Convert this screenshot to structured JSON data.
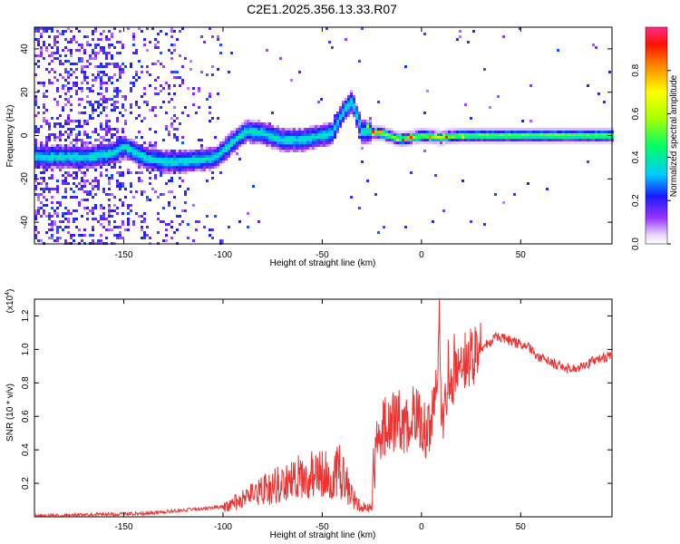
{
  "title": "C2E1.2025.356.13.33.R07",
  "colors": {
    "series": "#ee3333",
    "frame": "#000000"
  },
  "chart_data": [
    {
      "type": "heatmap",
      "xlabel": "Height of straight line (km)",
      "ylabel": "Frequency (Hz)",
      "xlim": [
        -195,
        96
      ],
      "ylim": [
        -50,
        50
      ],
      "xticks": [
        -150,
        -100,
        -50,
        0,
        50
      ],
      "yticks": [
        -40,
        -20,
        0,
        20,
        40
      ],
      "colorbar": {
        "label": "Normalized spectral amplitude",
        "range": [
          0,
          1
        ],
        "ticks": [
          0.0,
          0.2,
          0.4,
          0.6,
          0.8
        ]
      },
      "ridge": [
        {
          "x": -168,
          "y": -10
        },
        {
          "x": -155,
          "y": -8
        },
        {
          "x": -150,
          "y": -5
        },
        {
          "x": -140,
          "y": -10
        },
        {
          "x": -130,
          "y": -12
        },
        {
          "x": -120,
          "y": -12
        },
        {
          "x": -110,
          "y": -11
        },
        {
          "x": -103,
          "y": -10
        },
        {
          "x": -95,
          "y": -3
        },
        {
          "x": -88,
          "y": 2
        },
        {
          "x": -80,
          "y": 1
        },
        {
          "x": -70,
          "y": -2
        },
        {
          "x": -60,
          "y": -2
        },
        {
          "x": -50,
          "y": 0
        },
        {
          "x": -45,
          "y": 1
        },
        {
          "x": -40,
          "y": 10
        },
        {
          "x": -35,
          "y": 16
        },
        {
          "x": -30,
          "y": 2
        },
        {
          "x": -20,
          "y": 1
        },
        {
          "x": -10,
          "y": -2
        },
        {
          "x": 0,
          "y": 0
        },
        {
          "x": 10,
          "y": -1
        },
        {
          "x": 20,
          "y": 0
        },
        {
          "x": 40,
          "y": 0
        },
        {
          "x": 60,
          "y": 0
        },
        {
          "x": 80,
          "y": 0
        },
        {
          "x": 95,
          "y": 0
        }
      ]
    },
    {
      "type": "line",
      "xlabel": "Height of straight line (km)",
      "ylabel": "SNR (10 * v/v)",
      "multiplier": "(x10",
      "multiplier_exp": "4",
      "multiplier_close": ")",
      "xlim": [
        -195,
        96
      ],
      "ylim": [
        0,
        1.3
      ],
      "xticks": [
        -150,
        -100,
        -50,
        0,
        50
      ],
      "yticks": [
        0.2,
        0.4,
        0.6,
        0.8,
        1.0,
        1.2
      ],
      "series": [
        {
          "name": "SNR",
          "x": [
            -195,
            -180,
            -160,
            -140,
            -130,
            -120,
            -110,
            -100,
            -95,
            -90,
            -85,
            -80,
            -75,
            -70,
            -65,
            -60,
            -55,
            -50,
            -45,
            -42,
            -40,
            -38,
            -35,
            -32,
            -30,
            -28,
            -25,
            -24,
            -23,
            -22,
            -20,
            -18,
            -15,
            -12,
            -10,
            -8,
            -5,
            -2,
            0,
            3,
            5,
            7,
            8,
            9,
            10,
            12,
            15,
            18,
            20,
            25,
            30,
            35,
            38,
            40,
            45,
            50,
            55,
            60,
            65,
            70,
            75,
            80,
            85,
            90,
            96
          ],
          "y": [
            0.005,
            0.01,
            0.015,
            0.02,
            0.03,
            0.04,
            0.05,
            0.06,
            0.08,
            0.1,
            0.13,
            0.16,
            0.18,
            0.2,
            0.22,
            0.24,
            0.25,
            0.25,
            0.25,
            0.28,
            0.25,
            0.2,
            0.12,
            0.08,
            0.06,
            0.05,
            0.05,
            0.2,
            0.35,
            0.45,
            0.5,
            0.55,
            0.55,
            0.6,
            0.55,
            0.5,
            0.6,
            0.6,
            0.55,
            0.5,
            0.6,
            0.7,
            0.8,
            1.25,
            0.5,
            0.75,
            0.8,
            0.85,
            0.9,
            0.95,
            1.0,
            1.05,
            1.08,
            1.07,
            1.05,
            1.03,
            1.0,
            0.95,
            0.92,
            0.9,
            0.88,
            0.9,
            0.92,
            0.95,
            0.96
          ]
        }
      ]
    }
  ]
}
